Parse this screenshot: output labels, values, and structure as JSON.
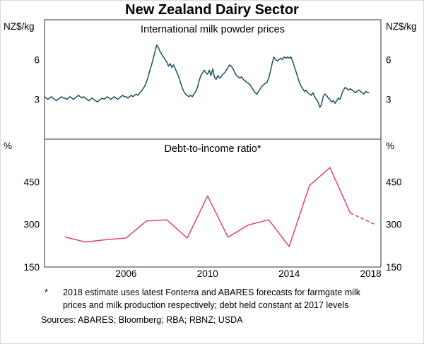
{
  "title": "New Zealand Dairy Sector",
  "footnote": {
    "marker": "*",
    "text": "2018 estimate uses latest Fonterra and ABARES forecasts for farmgate milk prices and milk production respectively; debt held constant at 2017 levels"
  },
  "sources": "Sources: ABARES; Bloomberg; RBA; RBNZ; USDA",
  "colors": {
    "milk_line": "#17505c",
    "debt_line": "#e0417e",
    "axis": "#333333"
  },
  "chart_data": [
    {
      "type": "line",
      "panel": "top",
      "title": "International milk powder prices",
      "unit_left": "NZ$/kg",
      "unit_right": "NZ$/kg",
      "ylim": [
        0,
        9
      ],
      "yticks": [
        3,
        6
      ],
      "xlim": [
        2002,
        2018.5
      ],
      "grid": false,
      "legend": "none",
      "series": [
        {
          "name": "International milk powder prices",
          "id": "milk-powder-price-line",
          "color": "#17505c",
          "x_start": 2002,
          "x_step": 0.0833333,
          "values": [
            3.2,
            3.1,
            3.0,
            3.1,
            3.2,
            3.1,
            3.0,
            2.9,
            3.0,
            3.1,
            3.2,
            3.1,
            3.1,
            3.0,
            3.1,
            3.2,
            3.1,
            3.0,
            3.1,
            3.2,
            3.3,
            3.2,
            3.1,
            3.2,
            3.1,
            3.0,
            2.9,
            3.0,
            3.1,
            3.0,
            2.9,
            2.8,
            2.9,
            3.0,
            3.1,
            3.0,
            3.1,
            3.2,
            3.1,
            3.0,
            3.1,
            3.2,
            3.1,
            3.0,
            3.1,
            3.2,
            3.3,
            3.2,
            3.2,
            3.1,
            3.2,
            3.3,
            3.2,
            3.3,
            3.4,
            3.3,
            3.5,
            3.6,
            3.8,
            4.0,
            4.3,
            4.7,
            5.2,
            5.6,
            6.1,
            6.6,
            7.1,
            6.9,
            6.6,
            6.4,
            6.2,
            6.0,
            5.8,
            5.5,
            5.7,
            5.4,
            5.6,
            5.3,
            5.0,
            4.7,
            4.3,
            3.9,
            3.6,
            3.4,
            3.3,
            3.2,
            3.3,
            3.2,
            3.4,
            3.6,
            3.9,
            4.4,
            4.8,
            5.0,
            5.2,
            5.0,
            4.9,
            5.2,
            4.8,
            5.3,
            4.7,
            4.5,
            4.8,
            4.6,
            4.7,
            4.9,
            5.0,
            5.2,
            5.4,
            5.6,
            5.5,
            5.3,
            5.0,
            4.8,
            4.7,
            4.6,
            4.7,
            4.5,
            4.4,
            4.3,
            4.2,
            4.1,
            3.9,
            3.7,
            3.5,
            3.4,
            3.6,
            3.8,
            4.0,
            4.1,
            4.2,
            4.3,
            4.6,
            5.1,
            5.7,
            6.2,
            6.0,
            5.9,
            6.0,
            6.1,
            6.0,
            6.2,
            6.1,
            6.2,
            6.1,
            6.2,
            5.9,
            5.5,
            5.1,
            4.7,
            4.3,
            4.0,
            3.8,
            3.6,
            3.7,
            3.5,
            3.4,
            3.3,
            3.5,
            3.2,
            3.0,
            2.8,
            2.4,
            2.6,
            3.2,
            3.4,
            3.3,
            3.1,
            3.0,
            2.8,
            2.9,
            2.7,
            2.9,
            3.1,
            3.0,
            3.4,
            3.7,
            3.9,
            3.8,
            3.7,
            3.8,
            3.7,
            3.6,
            3.5,
            3.6,
            3.7,
            3.6,
            3.5,
            3.4,
            3.6,
            3.5,
            3.5
          ]
        }
      ]
    },
    {
      "type": "line",
      "panel": "bottom",
      "title": "Debt-to-income ratio*",
      "unit_left": "%",
      "unit_right": "%",
      "ylim": [
        150,
        600
      ],
      "yticks": [
        150,
        300,
        450
      ],
      "xlim": [
        2002,
        2018.5
      ],
      "xticks": [
        2006,
        2010,
        2014,
        2018
      ],
      "grid": false,
      "legend": "none",
      "series": [
        {
          "name": "Debt-to-income ratio",
          "id": "debt-to-income-line",
          "color": "#e0417e",
          "x": [
            2003,
            2004,
            2005,
            2006,
            2007,
            2008,
            2009,
            2010,
            2011,
            2012,
            2013,
            2014,
            2015,
            2016,
            2017
          ],
          "values": [
            256,
            238,
            246,
            252,
            312,
            316,
            252,
            400,
            255,
            298,
            316,
            222,
            437,
            500,
            340
          ]
        },
        {
          "name": "Debt-to-income ratio (2018 estimate)",
          "id": "debt-to-income-estimate-line",
          "color": "#e0417e",
          "dashed": true,
          "x": [
            2017,
            2018.2
          ],
          "values": [
            340,
            300
          ]
        }
      ]
    }
  ]
}
